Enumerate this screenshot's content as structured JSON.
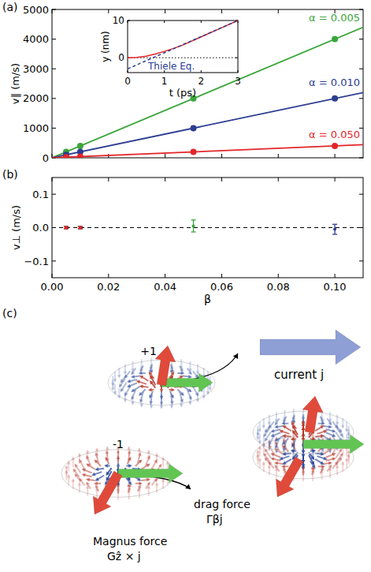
{
  "chart_data": [
    {
      "panel": "(a)",
      "type": "scatter",
      "y_label": "v∥ (m/s)",
      "xlim": [
        0,
        0.11
      ],
      "xticks": [
        0,
        0.02,
        0.04,
        0.06,
        0.08,
        0.1
      ],
      "ylim": [
        0,
        5000
      ],
      "yticks": [
        0,
        1000,
        2000,
        3000,
        4000,
        5000
      ],
      "tick_labels": "y",
      "series": [
        {
          "name": "α = 0.005",
          "type": "line",
          "color": "#3aa53a",
          "line_style": "solid",
          "x": [
            0,
            0.11
          ],
          "values": [
            0,
            4400
          ]
        },
        {
          "name": "α = 0.010",
          "type": "line",
          "color": "#2c3d91",
          "line_style": "solid",
          "x": [
            0,
            0.11
          ],
          "values": [
            0,
            2200
          ]
        },
        {
          "name": "α = 0.050",
          "type": "line",
          "color": "#e3262a",
          "line_style": "solid",
          "x": [
            0,
            0.11
          ],
          "values": [
            0,
            440
          ]
        },
        {
          "type": "scatter",
          "color": "#3aa53a",
          "marker": "circle",
          "x": [
            0.005,
            0.01,
            0.05,
            0.1
          ],
          "values": [
            200,
            400,
            2000,
            4000
          ]
        },
        {
          "type": "scatter",
          "color": "#2c3d91",
          "marker": "circle",
          "x": [
            0.005,
            0.01,
            0.05,
            0.1
          ],
          "values": [
            100,
            200,
            1000,
            2000
          ]
        },
        {
          "type": "scatter",
          "color": "#e3262a",
          "marker": "circle",
          "x": [
            0.005,
            0.01,
            0.05,
            0.1
          ],
          "values": [
            20,
            40,
            200,
            400
          ]
        }
      ]
    },
    {
      "type": "line",
      "x_label": "t (ps)",
      "y_label": "y (nm)",
      "xlim": [
        0,
        3
      ],
      "xticks": [
        0,
        1,
        2,
        3
      ],
      "ylim": [
        -4,
        10
      ],
      "yticks": [
        0,
        10
      ],
      "series": [
        {
          "color": "#e3262a",
          "line_style": "solid",
          "x": [
            0,
            0.25,
            0.5,
            0.75,
            1,
            1.25,
            1.5,
            2,
            2.5,
            3
          ],
          "values": [
            0,
            0.1,
            0.4,
            1.0,
            1.7,
            2.5,
            3.4,
            5.6,
            7.8,
            10
          ]
        },
        {
          "name": "Thiele Eq.",
          "color": "#2c3d91",
          "line_style": "dashed",
          "x": [
            0,
            3
          ],
          "values": [
            -3,
            10
          ]
        }
      ]
    },
    {
      "panel": "(b)",
      "type": "scatter",
      "x_label": "β",
      "y_label": "v⊥ (m/s)",
      "xlim": [
        0,
        0.11
      ],
      "xticks": [
        {
          "value": 0,
          "label": "0.00"
        },
        {
          "value": 0.02,
          "label": "0.02"
        },
        {
          "value": 0.04,
          "label": "0.04"
        },
        {
          "value": 0.06,
          "label": "0.06"
        },
        {
          "value": 0.08,
          "label": "0.08"
        },
        {
          "value": 0.1,
          "label": "0.10"
        }
      ],
      "ylim": [
        -0.15,
        0.15
      ],
      "yticks": [
        {
          "value": -0.1,
          "label": "−0.1"
        },
        {
          "value": 0,
          "label": "0.0"
        },
        {
          "value": 0.1,
          "label": "0.1"
        }
      ],
      "series": [
        {
          "color": "#3aa53a",
          "marker": "circle",
          "x": [
            0.005,
            0.01,
            0.05
          ],
          "values": [
            0,
            0,
            0.005
          ],
          "error": [
            0.003,
            0.003,
            0.018
          ]
        },
        {
          "color": "#2c3d91",
          "marker": "circle",
          "x": [
            0.005,
            0.01,
            0.1
          ],
          "values": [
            0,
            0,
            -0.005
          ],
          "error": [
            0.003,
            0.003,
            0.015
          ]
        },
        {
          "color": "#e3262a",
          "marker": "circle",
          "x": [
            0.005,
            0.01
          ],
          "values": [
            0,
            0
          ],
          "error": [
            0.003,
            0.003
          ]
        }
      ]
    }
  ],
  "diagram": {
    "panel": "(c)",
    "charges": [
      "+1",
      "-1"
    ],
    "current": "current j",
    "drag_force": [
      "drag force",
      "Γβj"
    ],
    "magnus_force": [
      "Magnus force",
      "Gẑ × j"
    ]
  }
}
